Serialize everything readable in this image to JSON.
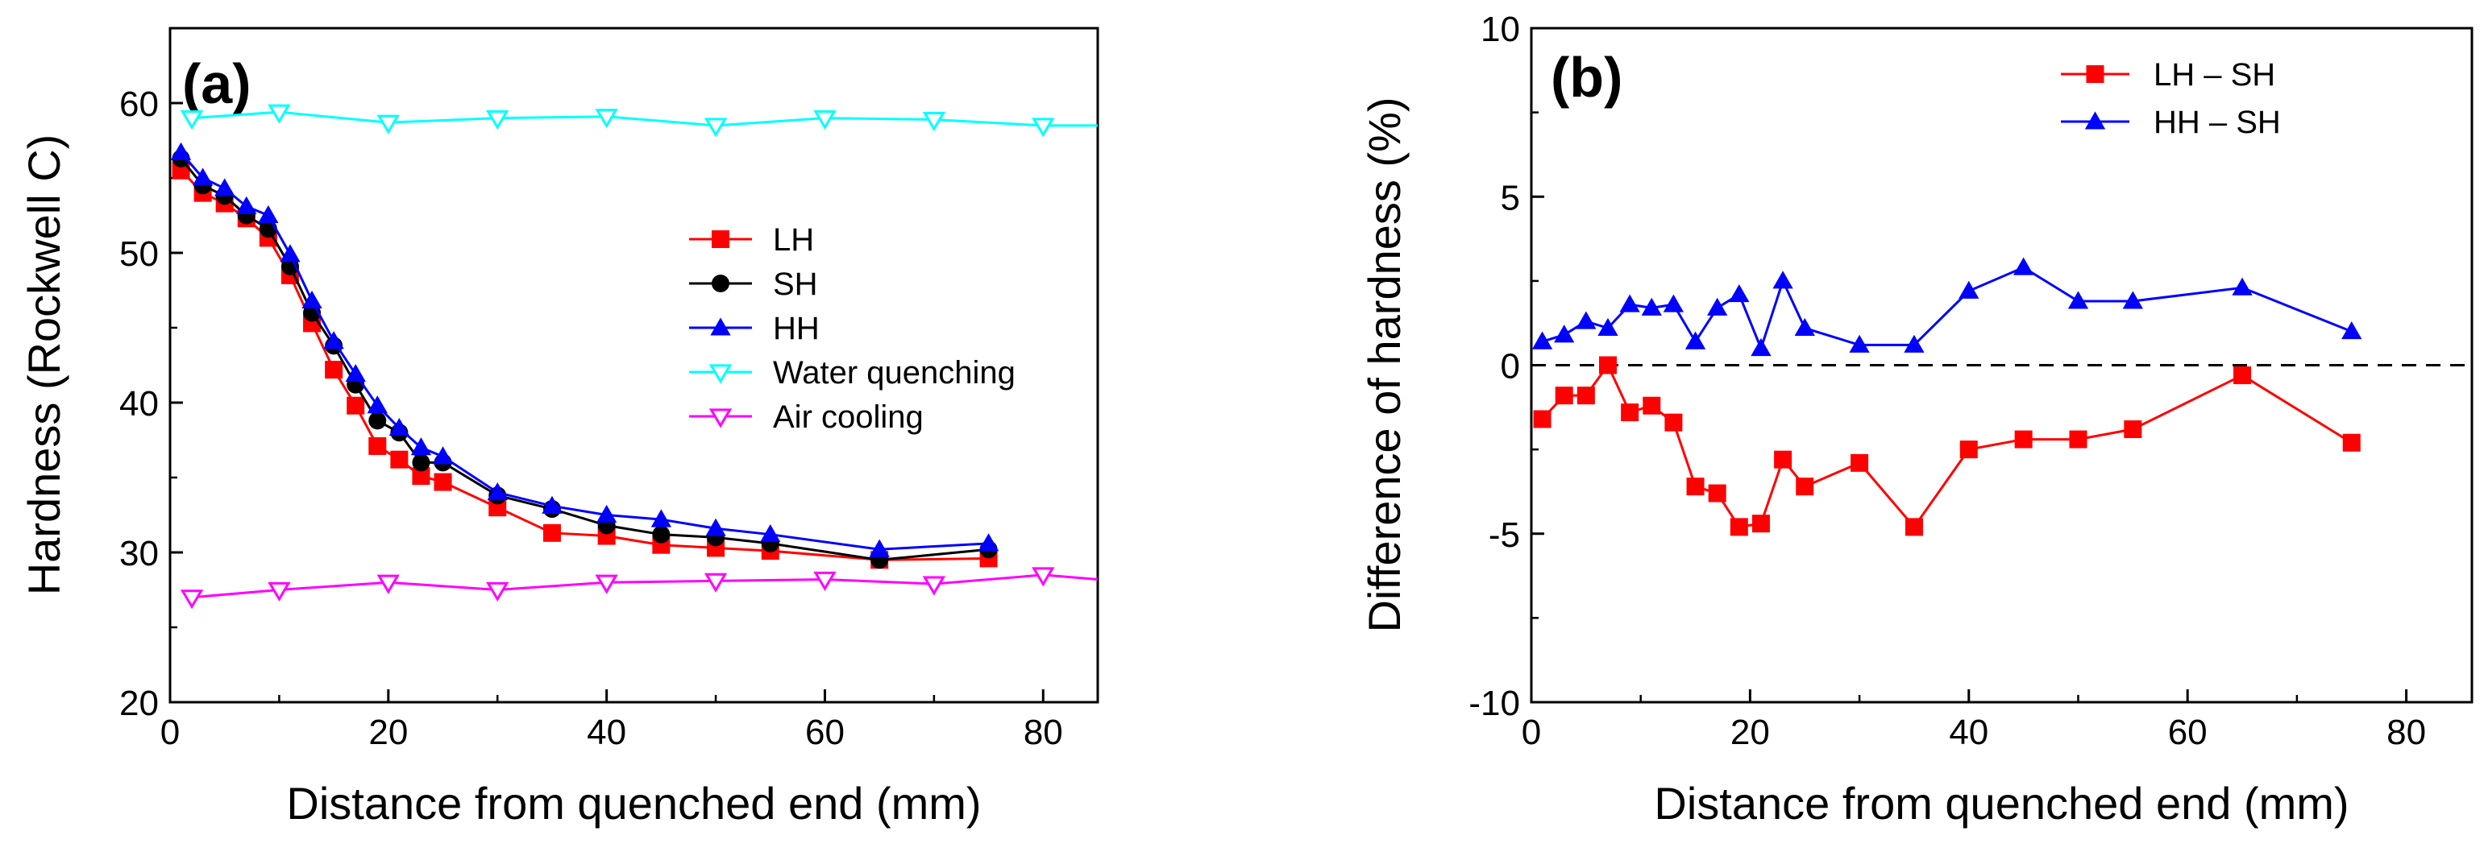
{
  "chart_data": [
    {
      "type": "line",
      "panel_label": "(a)",
      "xlabel": "Distance from quenched end (mm)",
      "ylabel": "Hardness (Rockwell C)",
      "xlim": [
        0,
        85
      ],
      "ylim": [
        20,
        65
      ],
      "xticks": [
        "0",
        "20",
        "40",
        "60",
        "80"
      ],
      "yticks": [
        "20",
        "30",
        "40",
        "50",
        "60"
      ],
      "legend_position": "center-right",
      "series": [
        {
          "name": "LH",
          "color": "#ff0000",
          "marker": "square",
          "x": [
            1,
            3,
            5,
            7,
            9,
            11,
            13,
            15,
            17,
            19,
            21,
            23,
            25,
            30,
            35,
            40,
            45,
            50,
            55,
            65,
            75
          ],
          "y": [
            55.5,
            54.0,
            53.3,
            52.3,
            51.0,
            48.5,
            45.3,
            42.2,
            39.8,
            37.1,
            36.2,
            35.1,
            34.7,
            33.0,
            31.3,
            31.1,
            30.5,
            30.3,
            30.1,
            29.5,
            29.6
          ]
        },
        {
          "name": "SH",
          "color": "#000000",
          "marker": "circle",
          "x": [
            1,
            3,
            5,
            7,
            9,
            11,
            13,
            15,
            17,
            19,
            21,
            23,
            25,
            30,
            35,
            40,
            45,
            50,
            55,
            65,
            75
          ],
          "y": [
            56.3,
            54.5,
            53.8,
            52.5,
            51.6,
            49.1,
            46.0,
            43.8,
            41.2,
            38.8,
            38.0,
            36.0,
            36.0,
            33.8,
            32.9,
            31.8,
            31.2,
            31.0,
            30.6,
            29.5,
            30.2
          ]
        },
        {
          "name": "HH",
          "color": "#0000ff",
          "marker": "triangle-up",
          "x": [
            1,
            3,
            5,
            7,
            9,
            11,
            13,
            15,
            17,
            19,
            21,
            23,
            25,
            30,
            35,
            40,
            45,
            50,
            55,
            65,
            75
          ],
          "y": [
            56.7,
            55.0,
            54.3,
            53.1,
            52.5,
            49.9,
            46.8,
            44.1,
            41.9,
            39.8,
            38.3,
            37.0,
            36.4,
            34.0,
            33.1,
            32.5,
            32.2,
            31.6,
            31.2,
            30.2,
            30.6
          ]
        },
        {
          "name": "Water quenching",
          "color": "#00ffff",
          "marker": "triangle-down-open",
          "x": [
            2,
            10,
            20,
            30,
            40,
            50,
            60,
            70,
            80,
            85
          ],
          "y": [
            59.0,
            59.4,
            58.7,
            59.0,
            59.1,
            58.5,
            59.0,
            58.9,
            58.5,
            58.5
          ],
          "last_marker_shown": false
        },
        {
          "name": "Air cooling",
          "color": "#ff00ff",
          "marker": "triangle-down-open",
          "x": [
            2,
            10,
            20,
            30,
            40,
            50,
            60,
            70,
            80,
            85
          ],
          "y": [
            27.0,
            27.5,
            28.0,
            27.5,
            28.0,
            28.1,
            28.2,
            27.9,
            28.5,
            28.2
          ],
          "last_marker_shown": false
        }
      ]
    },
    {
      "type": "line",
      "panel_label": "(b)",
      "xlabel": "Distance from quenched end (mm)",
      "ylabel": "Difference of hardness (%)",
      "xlim": [
        0,
        86
      ],
      "ylim": [
        -10,
        10
      ],
      "xticks": [
        "0",
        "20",
        "40",
        "60",
        "80"
      ],
      "yticks": [
        "-10",
        "-5",
        "0",
        "5",
        "10"
      ],
      "reference_line": {
        "y": 0,
        "style": "dashed"
      },
      "legend_position": "top-right",
      "series": [
        {
          "name": "LH – SH",
          "color": "#ff0000",
          "marker": "square",
          "x": [
            1,
            3,
            5,
            7,
            9,
            11,
            13,
            15,
            17,
            19,
            21,
            23,
            25,
            30,
            35,
            40,
            45,
            50,
            55,
            65,
            75
          ],
          "y": [
            -1.6,
            -0.9,
            -0.9,
            0.0,
            -1.4,
            -1.2,
            -1.7,
            -3.6,
            -3.8,
            -4.8,
            -4.7,
            -2.8,
            -3.6,
            -2.9,
            -4.8,
            -2.5,
            -2.2,
            -2.2,
            -1.9,
            -0.3,
            -2.3
          ]
        },
        {
          "name": "HH – SH",
          "color": "#0000ff",
          "marker": "triangle-up",
          "x": [
            1,
            3,
            5,
            7,
            9,
            11,
            13,
            15,
            17,
            19,
            21,
            23,
            25,
            30,
            35,
            40,
            45,
            50,
            55,
            65,
            75
          ],
          "y": [
            0.7,
            0.9,
            1.3,
            1.1,
            1.8,
            1.7,
            1.8,
            0.7,
            1.7,
            2.1,
            0.5,
            2.5,
            1.1,
            0.6,
            0.6,
            2.2,
            2.9,
            1.9,
            1.9,
            2.3,
            1.0
          ]
        }
      ]
    }
  ]
}
